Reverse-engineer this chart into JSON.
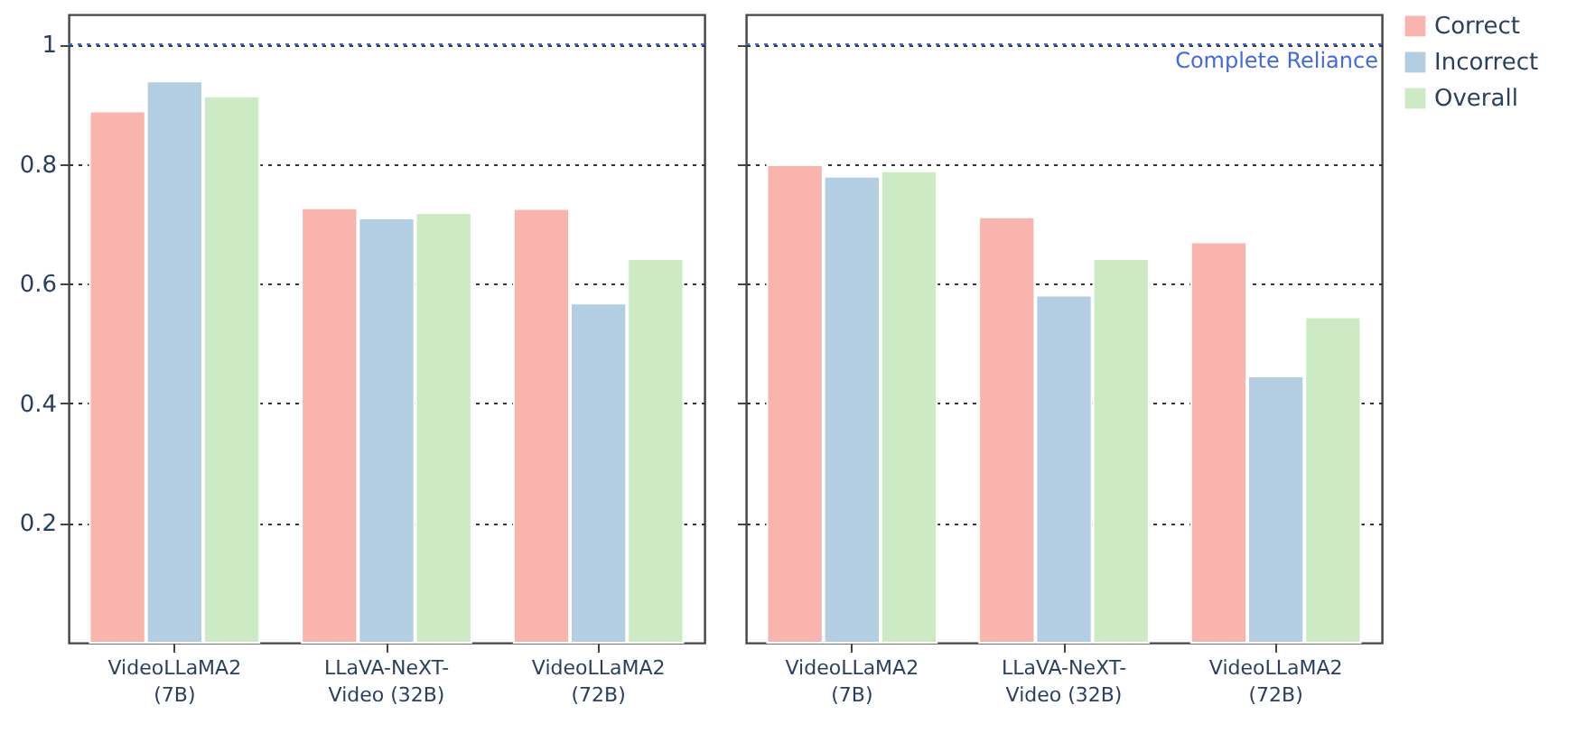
{
  "chart_data": [
    {
      "type": "bar",
      "categories": [
        "VideoLLaMA2\n(7B)",
        "LLaVA-NeXT-\nVideo (32B)",
        "VideoLLaMA2\n(72B)"
      ],
      "series": [
        {
          "name": "Correct",
          "color": "#fab4ae",
          "values": [
            0.888,
            0.726,
            0.725
          ]
        },
        {
          "name": "Incorrect",
          "color": "#b3cde3",
          "values": [
            0.938,
            0.709,
            0.567
          ]
        },
        {
          "name": "Overall",
          "color": "#ccebc5",
          "values": [
            0.913,
            0.718,
            0.641
          ]
        }
      ],
      "ylim": [
        0,
        1.05
      ],
      "yticks": [
        0.2,
        0.4,
        0.6,
        0.8,
        {
          "value": 1,
          "label": "1"
        }
      ],
      "grid": "y",
      "legend": "top right",
      "ref_lines": [
        {
          "axis": "y",
          "value": 1,
          "color": "#4169e1",
          "line_style": "dotted"
        }
      ]
    },
    {
      "type": "bar",
      "categories": [
        "VideoLLaMA2\n(7B)",
        "LLaVA-NeXT-\nVideo (32B)",
        "VideoLLaMA2\n(72B)"
      ],
      "series": [
        {
          "name": "Correct",
          "color": "#fab4ae",
          "values": [
            0.798,
            0.711,
            0.669
          ]
        },
        {
          "name": "Incorrect",
          "color": "#b3cde3",
          "values": [
            0.779,
            0.58,
            0.445
          ]
        },
        {
          "name": "Overall",
          "color": "#ccebc5",
          "values": [
            0.788,
            0.641,
            0.544
          ]
        }
      ],
      "ylim": [
        0,
        1.05
      ],
      "yticks": [
        0.2,
        0.4,
        0.6,
        0.8,
        1
      ],
      "grid": "y",
      "legend": "top right",
      "tick_labels": "x",
      "ref_lines": [
        {
          "axis": "y",
          "value": 1,
          "label": "Complete Reliance",
          "color": "#4169e1",
          "line_style": "dotted"
        }
      ]
    }
  ]
}
